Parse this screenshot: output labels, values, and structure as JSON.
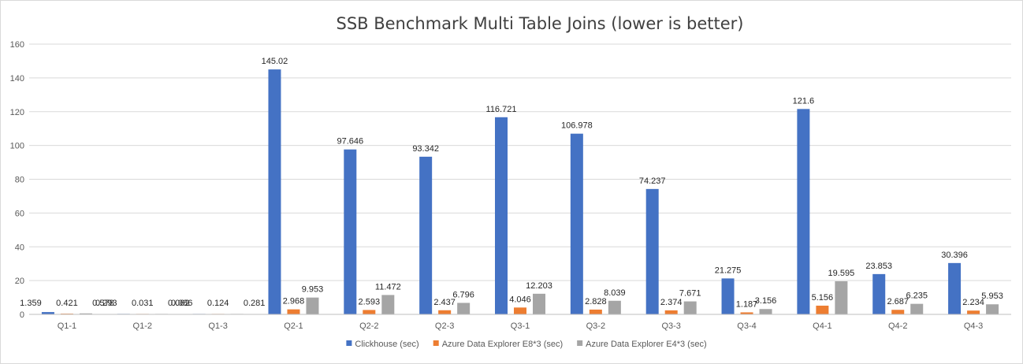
{
  "chart_data": {
    "type": "bar",
    "title": "SSB Benchmark Multi Table Joins (lower is better)",
    "xlabel": "",
    "ylabel": "",
    "ylim": [
      0,
      160
    ],
    "yticks": [
      0,
      20,
      40,
      60,
      80,
      100,
      120,
      140,
      160
    ],
    "categories": [
      "Q1-1",
      "Q1-2",
      "Q1-3",
      "Q2-1",
      "Q2-2",
      "Q2-3",
      "Q3-1",
      "Q3-2",
      "Q3-3",
      "Q3-4",
      "Q4-1",
      "Q4-2",
      "Q4-3"
    ],
    "series": [
      {
        "name": "Clickhouse (sec)",
        "color": "#4472C4",
        "values": [
          1.359,
          0.293,
          0.086,
          145.02,
          97.646,
          93.342,
          116.721,
          106.978,
          74.237,
          21.275,
          121.6,
          23.853,
          30.396
        ],
        "labels": [
          "1.359",
          "0.293",
          "0.086",
          "145.02",
          "97.646",
          "93.342",
          "116.721",
          "106.978",
          "74.237",
          "21.275",
          "121.6",
          "23.853",
          "30.396"
        ]
      },
      {
        "name": "Azure Data Explorer E8*3 (sec)",
        "color": "#ED7D31",
        "values": [
          0.421,
          0.031,
          0.124,
          2.968,
          2.593,
          2.437,
          4.046,
          2.828,
          2.374,
          1.187,
          5.156,
          2.687,
          2.234
        ],
        "labels": [
          "0.421",
          "0.031",
          "0.124",
          "2.968",
          "2.593",
          "2.437",
          "4.046",
          "2.828",
          "2.374",
          "1.187",
          "5.156",
          "2.687",
          "2.234"
        ]
      },
      {
        "name": "Azure Data Explorer E4*3 (sec)",
        "color": "#A5A5A5",
        "values": [
          0.578,
          0.062,
          0.281,
          9.953,
          11.472,
          6.796,
          12.203,
          8.039,
          7.671,
          3.156,
          19.595,
          6.235,
          5.953
        ],
        "labels": [
          "0.578",
          "0.062",
          "0.281",
          "9.953",
          "11.472",
          "6.796",
          "12.203",
          "8.039",
          "7.671",
          "3.156",
          "19.595",
          "6.235",
          "5.953"
        ]
      }
    ],
    "grid": true,
    "legend": "bottom"
  }
}
